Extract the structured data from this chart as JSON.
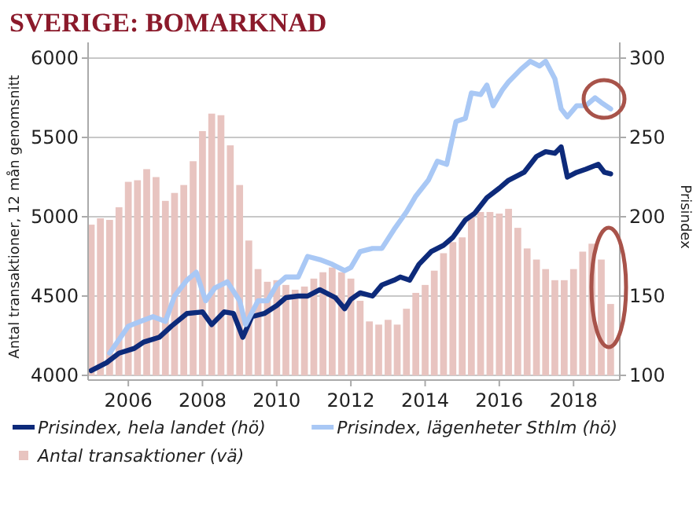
{
  "chart_data": {
    "type": "bar",
    "title": "SVERIGE: BOMARKNAD",
    "ylabel": "Antal transaktioner, 12 mån genomsnitt",
    "y2label": "Prisindex",
    "xlim": [
      "2004-12",
      "2019-04"
    ],
    "xticks": [
      {
        "value": "2006",
        "label": "2006"
      },
      {
        "value": "2008",
        "label": "2008"
      },
      {
        "value": "2010",
        "label": "2010"
      },
      {
        "value": "2012",
        "label": "2012"
      },
      {
        "value": "2014",
        "label": "2014"
      },
      {
        "value": "2016",
        "label": "2016"
      },
      {
        "value": "2018",
        "label": "2018"
      }
    ],
    "ylim": [
      4000,
      6000
    ],
    "yticks": [
      4000,
      4500,
      5000,
      5500,
      6000
    ],
    "y2lim": [
      100,
      300
    ],
    "y2ticks": [
      100,
      150,
      200,
      250,
      300
    ],
    "grid": "y",
    "legend": "bottom",
    "series": [
      {
        "name": "Prisindex, hela landet (hö)",
        "type": "line",
        "axis": "y2",
        "color": "#0d2a7a",
        "x": [
          "2005-01",
          "2005-06",
          "2005-10",
          "2006-03",
          "2006-06",
          "2006-11",
          "2007-03",
          "2007-08",
          "2008-01",
          "2008-04",
          "2008-08",
          "2008-11",
          "2009-02",
          "2009-05",
          "2009-09",
          "2010-01",
          "2010-04",
          "2010-08",
          "2010-11",
          "2011-03",
          "2011-08",
          "2011-11",
          "2012-01",
          "2012-04",
          "2012-08",
          "2012-11",
          "2013-03",
          "2013-05",
          "2013-08",
          "2013-11",
          "2014-03",
          "2014-07",
          "2014-10",
          "2015-02",
          "2015-05",
          "2015-09",
          "2016-01",
          "2016-04",
          "2016-09",
          "2017-01",
          "2017-04",
          "2017-07",
          "2017-09",
          "2017-11",
          "2018-02",
          "2018-05",
          "2018-09",
          "2018-11",
          "2019-01"
        ],
        "values": [
          103,
          108,
          114,
          117,
          121,
          124,
          131,
          139,
          140,
          132,
          140,
          139,
          124,
          137,
          139,
          144,
          149,
          150,
          150,
          154,
          149,
          142,
          148,
          152,
          150,
          157,
          160,
          162,
          160,
          170,
          178,
          182,
          187,
          198,
          202,
          212,
          218,
          223,
          228,
          238,
          241,
          240,
          244,
          225,
          228,
          230,
          233,
          228,
          227
        ]
      },
      {
        "name": "Prisindex, lägenheter Sthlm (hö)",
        "type": "line",
        "axis": "y2",
        "color": "#a9c8f5",
        "x": [
          "2005-07",
          "2006-01",
          "2006-05",
          "2006-09",
          "2007-01",
          "2007-04",
          "2007-08",
          "2007-11",
          "2008-02",
          "2008-05",
          "2008-09",
          "2009-01",
          "2009-03",
          "2009-07",
          "2009-10",
          "2010-01",
          "2010-04",
          "2010-08",
          "2010-11",
          "2011-03",
          "2011-07",
          "2011-11",
          "2012-01",
          "2012-04",
          "2012-08",
          "2012-11",
          "2013-03",
          "2013-07",
          "2013-10",
          "2014-02",
          "2014-05",
          "2014-08",
          "2014-11",
          "2015-02",
          "2015-04",
          "2015-07",
          "2015-09",
          "2015-11",
          "2016-02",
          "2016-04",
          "2016-08",
          "2016-11",
          "2017-02",
          "2017-04",
          "2017-07",
          "2017-09",
          "2017-11",
          "2018-02",
          "2018-05",
          "2018-08",
          "2018-10",
          "2019-01"
        ],
        "values": [
          114,
          131,
          134,
          137,
          134,
          150,
          160,
          165,
          147,
          155,
          159,
          147,
          132,
          147,
          147,
          157,
          162,
          162,
          175,
          173,
          170,
          166,
          168,
          178,
          180,
          180,
          192,
          203,
          213,
          223,
          235,
          233,
          260,
          262,
          278,
          277,
          283,
          270,
          280,
          285,
          293,
          298,
          295,
          298,
          287,
          268,
          263,
          270,
          270,
          275,
          272,
          268
        ]
      },
      {
        "name": "Antal transaktioner (vä)",
        "color": "#e8c4c0",
        "x": [
          "2005-01",
          "2005-04",
          "2005-07",
          "2005-10",
          "2006-01",
          "2006-04",
          "2006-07",
          "2006-10",
          "2007-01",
          "2007-04",
          "2007-07",
          "2007-10",
          "2008-01",
          "2008-04",
          "2008-07",
          "2008-10",
          "2009-01",
          "2009-04",
          "2009-07",
          "2009-10",
          "2010-01",
          "2010-04",
          "2010-07",
          "2010-10",
          "2011-01",
          "2011-04",
          "2011-07",
          "2011-10",
          "2012-01",
          "2012-04",
          "2012-07",
          "2012-10",
          "2013-01",
          "2013-04",
          "2013-07",
          "2013-10",
          "2014-01",
          "2014-04",
          "2014-07",
          "2014-10",
          "2015-01",
          "2015-04",
          "2015-07",
          "2015-10",
          "2016-01",
          "2016-04",
          "2016-07",
          "2016-10",
          "2017-01",
          "2017-04",
          "2017-07",
          "2017-10",
          "2018-01",
          "2018-04",
          "2018-07",
          "2018-10",
          "2019-01"
        ],
        "values": [
          4950,
          4990,
          4980,
          5060,
          5220,
          5230,
          5300,
          5250,
          5100,
          5150,
          5200,
          5350,
          5540,
          5650,
          5640,
          5450,
          5200,
          4850,
          4670,
          4590,
          4600,
          4570,
          4540,
          4560,
          4610,
          4650,
          4680,
          4650,
          4610,
          4470,
          4340,
          4320,
          4350,
          4320,
          4420,
          4520,
          4570,
          4660,
          4770,
          4840,
          4870,
          5000,
          5030,
          5030,
          5020,
          5050,
          4930,
          4800,
          4730,
          4670,
          4600,
          4600,
          4670,
          4780,
          4830,
          4730,
          4450
        ]
      }
    ]
  }
}
